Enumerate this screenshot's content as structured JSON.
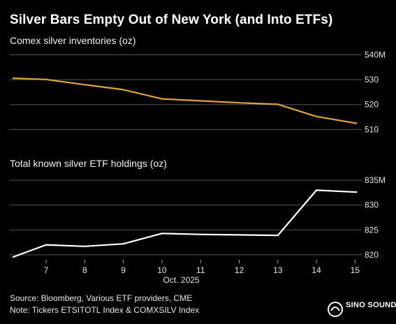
{
  "title": "Silver Bars Empty Out of New York (and Into ETFs)",
  "footer": {
    "source": "Source: Bloomberg, Various ETF providers, CME",
    "note": "Note: Tickers ETSITOTL Index & COMXSILV Index"
  },
  "logo": {
    "text": "SINO SOUND"
  },
  "colors": {
    "background": "#000000",
    "comex_line": "#e0a33a",
    "etf_line": "#ffffff",
    "grid": "#555555"
  },
  "chart_data": [
    {
      "type": "line",
      "title": "Comex silver inventories (oz)",
      "x_dates": [
        "2025-10-06",
        "2025-10-07",
        "2025-10-08",
        "2025-10-09",
        "2025-10-10",
        "2025-10-13",
        "2025-10-14",
        "2025-10-15"
      ],
      "series": [
        {
          "values": [
            530.6,
            530.1,
            528.0,
            526.0,
            522.3,
            521.5,
            520.7,
            520.1,
            515.2,
            512.4
          ],
          "x": [
            "2025-10-06",
            "2025-10-07",
            "2025-10-08",
            "2025-10-09",
            "2025-10-10",
            "2025-10-11",
            "2025-10-12",
            "2025-10-13",
            "2025-10-14",
            "2025-10-15"
          ]
        }
      ],
      "yticks": [
        "540M",
        "530",
        "520",
        "510"
      ],
      "ytick_values": [
        540,
        530,
        520,
        510
      ],
      "ylim": [
        507,
        541
      ],
      "grid": true
    },
    {
      "type": "line",
      "title": "Total known silver ETF holdings (oz)",
      "series": [
        {
          "values": [
            819.5,
            822.0,
            821.7,
            822.2,
            824.3,
            824.1,
            824.0,
            823.9,
            833.0,
            832.6
          ],
          "x": [
            "2025-10-06",
            "2025-10-07",
            "2025-10-08",
            "2025-10-09",
            "2025-10-10",
            "2025-10-11",
            "2025-10-12",
            "2025-10-13",
            "2025-10-14",
            "2025-10-15"
          ]
        }
      ],
      "yticks": [
        "835M",
        "830",
        "825",
        "820"
      ],
      "ytick_values": [
        835,
        830,
        825,
        820
      ],
      "ylim": [
        819,
        836
      ],
      "grid": true
    }
  ],
  "x_axis": {
    "tick_labels": [
      "7",
      "8",
      "9",
      "10",
      "11",
      "12",
      "13",
      "14",
      "15"
    ],
    "tick_days": [
      7,
      8,
      9,
      10,
      11,
      12,
      13,
      14,
      15
    ],
    "month_label": "Oct. 2025"
  }
}
